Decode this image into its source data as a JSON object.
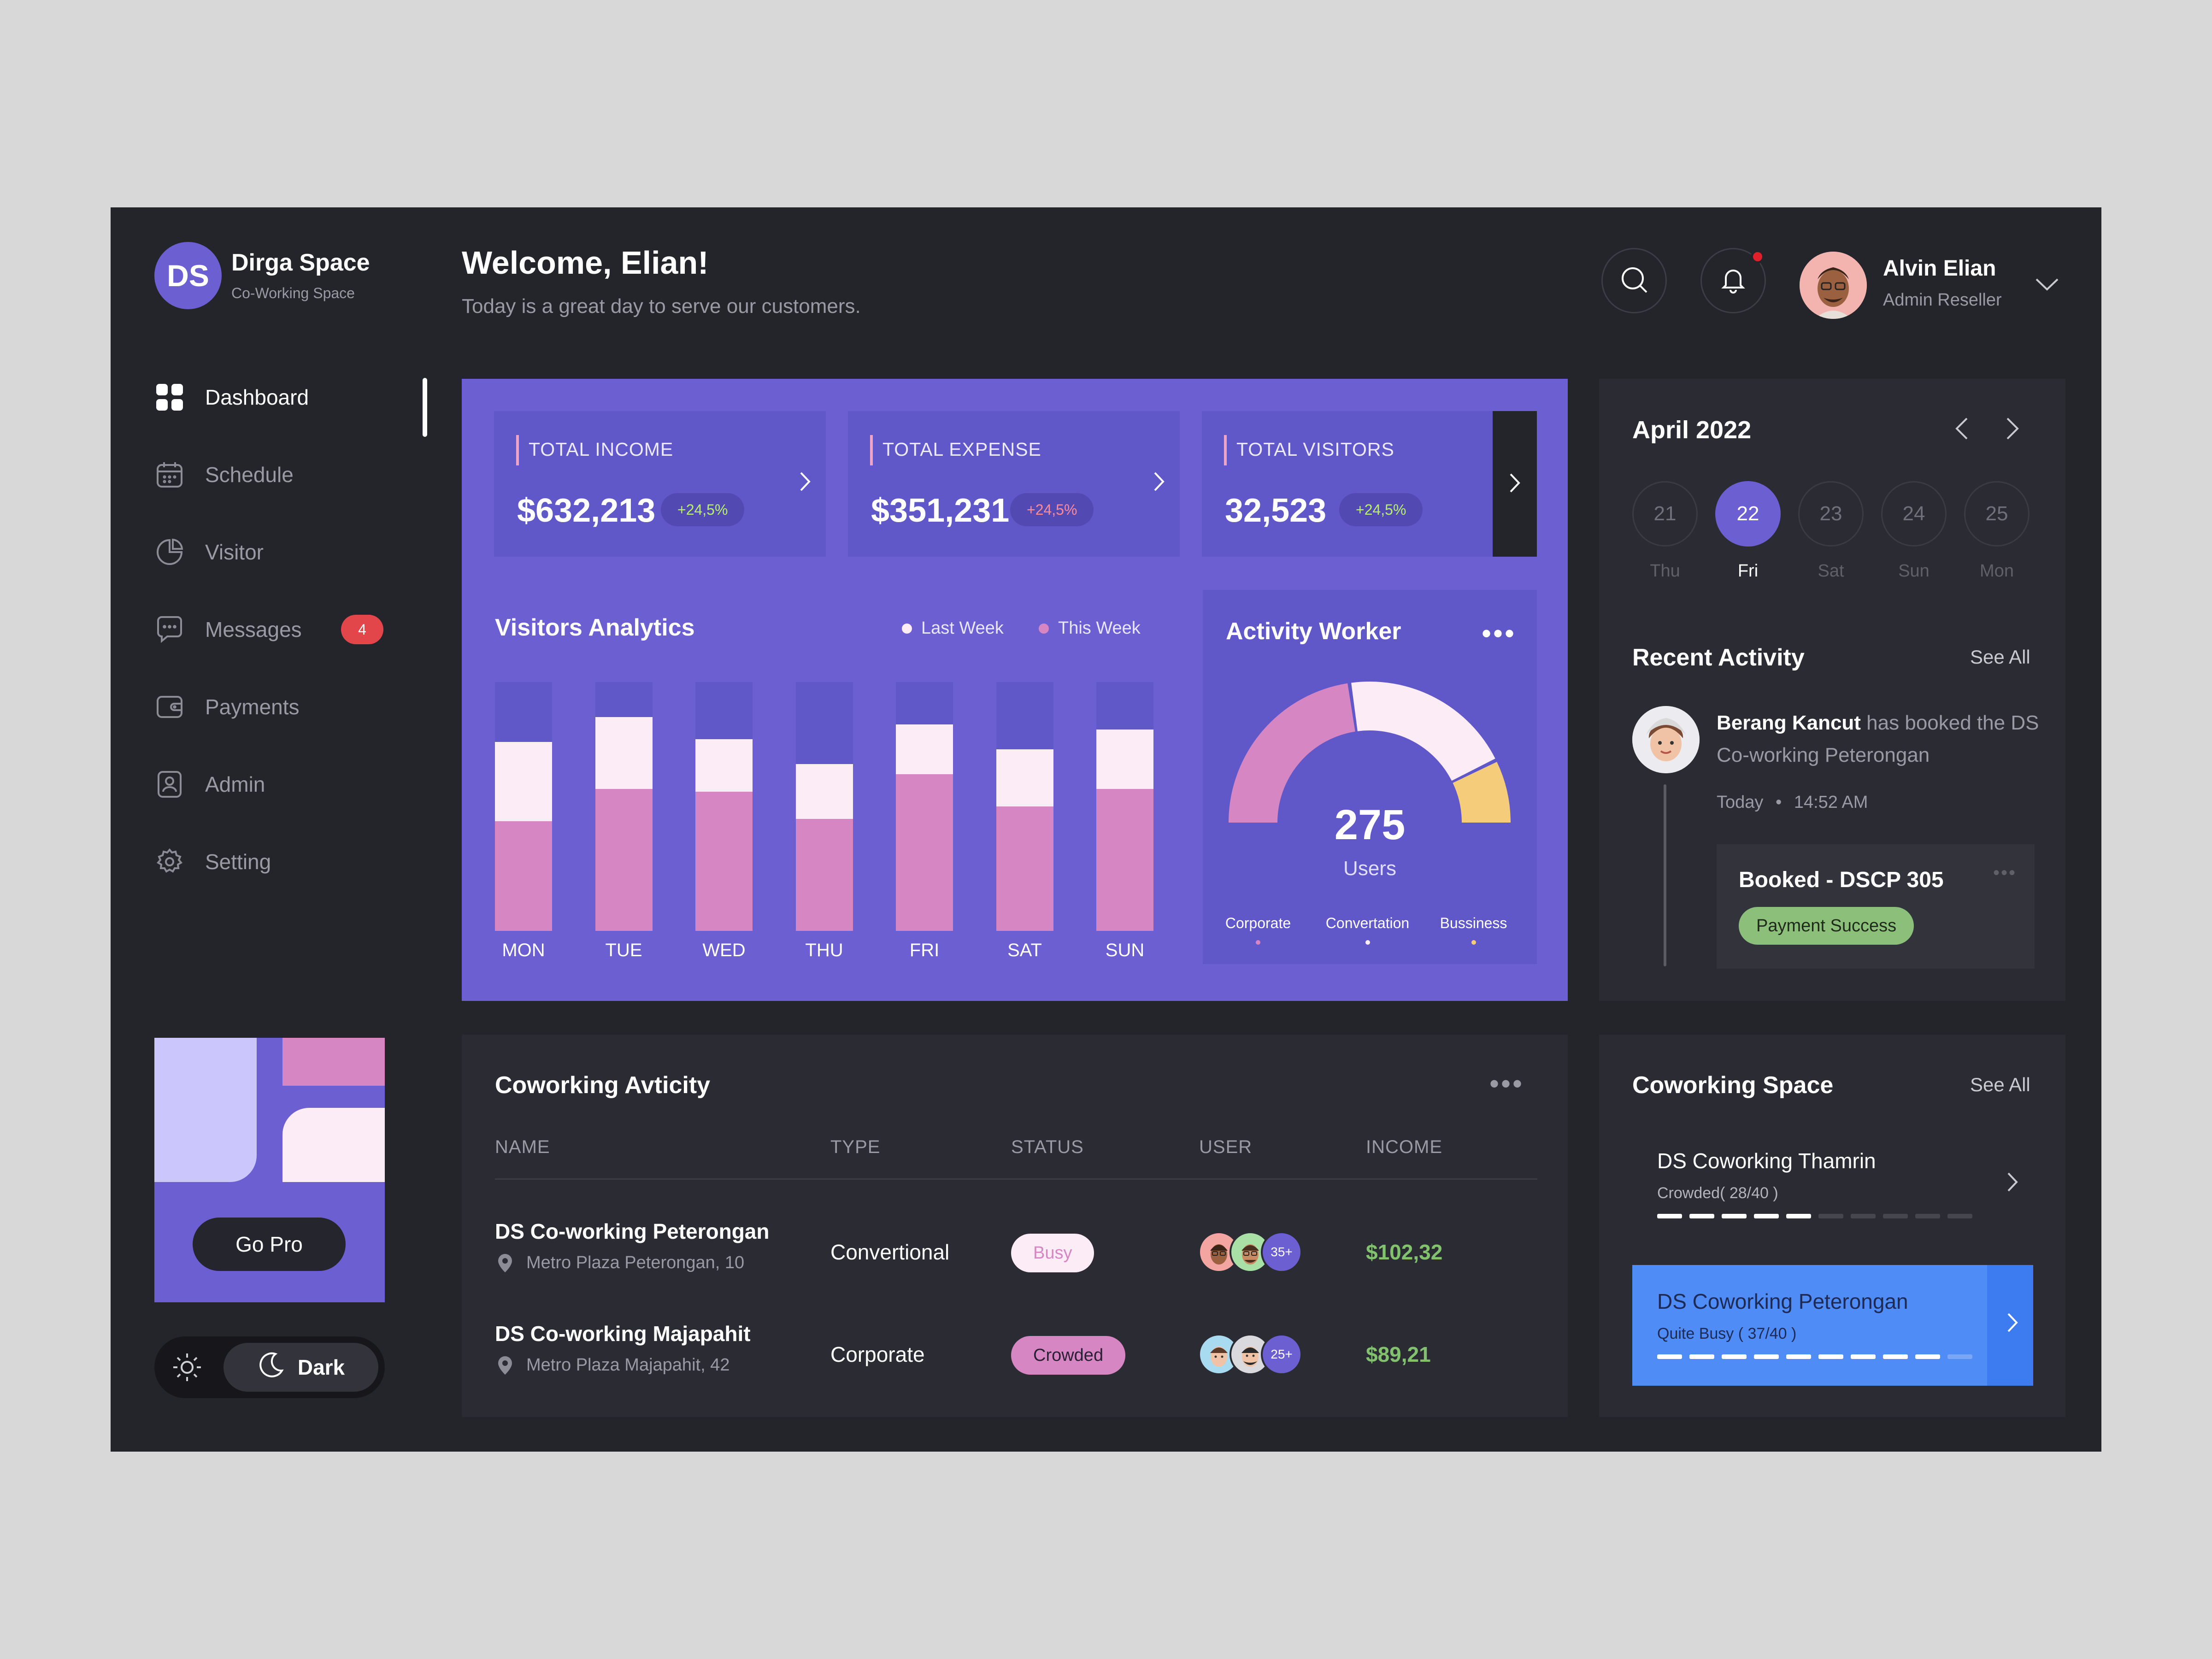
{
  "brand": {
    "logo": "DS",
    "name": "Dirga Space",
    "subtitle": "Co-Working Space"
  },
  "nav": {
    "items": [
      {
        "label": "Dashboard",
        "icon": "grid-icon",
        "active": true
      },
      {
        "label": "Schedule",
        "icon": "calendar-icon"
      },
      {
        "label": "Visitor",
        "icon": "pie-chart-icon"
      },
      {
        "label": "Messages",
        "icon": "chat-icon",
        "badge": "4"
      },
      {
        "label": "Payments",
        "icon": "wallet-icon"
      },
      {
        "label": "Admin",
        "icon": "user-badge-icon"
      },
      {
        "label": "Setting",
        "icon": "gear-icon"
      }
    ]
  },
  "promo": {
    "button": "Go Pro"
  },
  "theme": {
    "dark_label": "Dark"
  },
  "header": {
    "welcome": "Welcome, Elian!",
    "subtitle": "Today is a great day to serve our customers."
  },
  "user": {
    "name": "Alvin Elian",
    "role": "Admin Reseller"
  },
  "stats": [
    {
      "label": "TOTAL INCOME",
      "value": "$632,213",
      "change": "+24,5%",
      "change_color": "#b7f06b"
    },
    {
      "label": "TOTAL EXPENSE",
      "value": "$351,231",
      "change": "+24,5%",
      "change_color": "#ff8a9a"
    },
    {
      "label": "TOTAL VISITORS",
      "value": "32,523",
      "change": "+24,5%",
      "change_color": "#b7f06b"
    }
  ],
  "visitors_analytics": {
    "title": "Visitors Analytics",
    "legend": {
      "last_week": "Last Week",
      "this_week": "This Week"
    }
  },
  "chart_data": {
    "type": "bar",
    "categories": [
      "MON",
      "TUE",
      "WED",
      "THU",
      "FRI",
      "SAT",
      "SUN"
    ],
    "series": [
      {
        "name": "This Week",
        "color": "#d686c3",
        "values": [
          44,
          57,
          56,
          45,
          63,
          50,
          57
        ]
      },
      {
        "name": "Last Week",
        "color": "#fcecf6",
        "values": [
          32,
          29,
          21,
          22,
          20,
          23,
          24
        ]
      }
    ],
    "ylim": [
      0,
      100
    ]
  },
  "activity_worker": {
    "title": "Activity Worker",
    "more": "•••",
    "value": "275",
    "unit": "Users",
    "segments": [
      {
        "label": "Corporate",
        "share": 0.45,
        "color": "#d686c3"
      },
      {
        "label": "Convertation",
        "share": 0.4,
        "color": "#fcecf6"
      },
      {
        "label": "Bussiness",
        "share": 0.15,
        "color": "#f5cd7a"
      }
    ]
  },
  "calendar": {
    "title": "April 2022",
    "days": [
      {
        "num": "21",
        "name": "Thu"
      },
      {
        "num": "22",
        "name": "Fri",
        "selected": true
      },
      {
        "num": "23",
        "name": "Sat"
      },
      {
        "num": "24",
        "name": "Sun"
      },
      {
        "num": "25",
        "name": "Mon"
      }
    ]
  },
  "recent_activity": {
    "title": "Recent Activity",
    "see_all": "See All",
    "user": "Berang Kancut",
    "text": " has booked the DS Co-working Peterongan",
    "date": "Today",
    "time": "14:52 AM",
    "booking_title": "Booked - DSCP 305",
    "booking_status": "Payment Success",
    "more": "•••"
  },
  "coworking_activity": {
    "title": "Coworking Avticity",
    "more": "•••",
    "headers": [
      "NAME",
      "TYPE",
      "STATUS",
      "USER",
      "INCOME"
    ],
    "rows": [
      {
        "name": "DS Co-working Peterongan",
        "location": "Metro Plaza Peterongan, 10",
        "type": "Convertional",
        "status": "Busy",
        "users_more": "35+",
        "income": "$102,32"
      },
      {
        "name": "DS Co-working Majapahit",
        "location": "Metro Plaza Majapahit, 42",
        "type": "Corporate",
        "status": "Crowded",
        "users_more": "25+",
        "income": "$89,21"
      }
    ]
  },
  "coworking_space": {
    "title": "Coworking Space",
    "see_all": "See All",
    "items": [
      {
        "name": "DS Coworking Thamrin",
        "status": "Crowded( 28/40 )",
        "filled": 5,
        "total": 10
      },
      {
        "name": "DS Coworking Peterongan",
        "status": "Quite Busy ( 37/40 )",
        "filled": 9,
        "total": 10
      }
    ]
  }
}
